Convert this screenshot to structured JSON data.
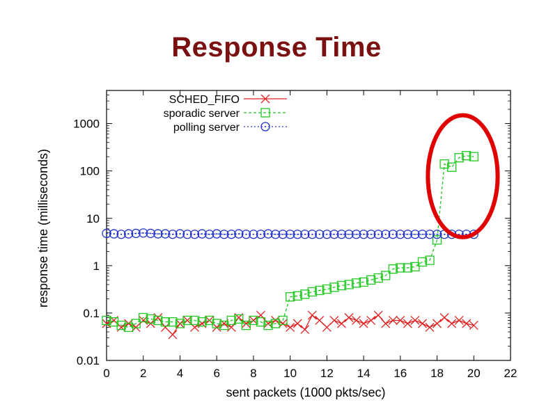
{
  "slide": {
    "title": "Response Time"
  },
  "chart_data": {
    "type": "line",
    "xlabel": "sent packets (1000 pkts/sec)",
    "ylabel": "response time (milliseconds)",
    "xlim": [
      0,
      22
    ],
    "ylim": [
      0.01,
      5000
    ],
    "yscale": "log",
    "x_ticks": [
      0,
      2,
      4,
      6,
      8,
      10,
      12,
      14,
      16,
      18,
      20,
      22
    ],
    "y_ticks": [
      0.01,
      0.1,
      1,
      10,
      100,
      1000
    ],
    "y_tick_labels": [
      "0.01",
      "0.1",
      "1",
      "10",
      "100",
      "1000"
    ],
    "legend_position": "top-left",
    "grid": false,
    "annotation": {
      "shape": "ellipse",
      "color": "#e00000",
      "encloses_x_range": [
        17.5,
        21.3
      ],
      "encloses_y_range": [
        4,
        1500
      ]
    },
    "series": [
      {
        "name": "SCHED_FIFO",
        "color": "#e02020",
        "marker": "x",
        "line": "solid",
        "x": [
          0.0,
          0.4,
          0.8,
          1.2,
          1.6,
          2.0,
          2.4,
          2.8,
          3.2,
          3.6,
          4.0,
          4.4,
          4.8,
          5.2,
          5.6,
          6.0,
          6.4,
          6.8,
          7.2,
          7.6,
          8.0,
          8.4,
          8.8,
          9.2,
          9.6,
          10.0,
          10.4,
          10.8,
          11.2,
          11.6,
          12.0,
          12.4,
          12.8,
          13.2,
          13.6,
          14.0,
          14.4,
          14.8,
          15.2,
          15.6,
          16.0,
          16.4,
          16.8,
          17.2,
          17.6,
          18.0,
          18.4,
          18.8,
          19.2,
          19.6,
          20.0
        ],
        "y": [
          0.06,
          0.07,
          0.05,
          0.06,
          0.05,
          0.07,
          0.06,
          0.08,
          0.05,
          0.035,
          0.06,
          0.07,
          0.05,
          0.06,
          0.07,
          0.05,
          0.06,
          0.05,
          0.08,
          0.06,
          0.07,
          0.09,
          0.06,
          0.07,
          0.06,
          0.05,
          0.06,
          0.045,
          0.09,
          0.07,
          0.05,
          0.07,
          0.06,
          0.08,
          0.07,
          0.06,
          0.07,
          0.09,
          0.06,
          0.07,
          0.07,
          0.06,
          0.07,
          0.06,
          0.05,
          0.06,
          0.08,
          0.06,
          0.07,
          0.06,
          0.055
        ]
      },
      {
        "name": "sporadic server",
        "color": "#20c820",
        "marker": "square",
        "line": "dashed",
        "x": [
          0.0,
          0.4,
          0.8,
          1.2,
          1.6,
          2.0,
          2.4,
          2.8,
          3.2,
          3.6,
          4.0,
          4.4,
          4.8,
          5.2,
          5.6,
          6.0,
          6.4,
          6.8,
          7.2,
          7.6,
          8.0,
          8.4,
          8.8,
          9.2,
          9.6,
          10.0,
          10.4,
          10.8,
          11.2,
          11.6,
          12.0,
          12.4,
          12.8,
          13.2,
          13.6,
          14.0,
          14.4,
          14.8,
          15.2,
          15.6,
          16.0,
          16.4,
          16.8,
          17.2,
          17.6,
          18.0,
          18.4,
          18.8,
          19.2,
          19.6,
          20.0
        ],
        "y": [
          0.07,
          0.065,
          0.055,
          0.05,
          0.06,
          0.08,
          0.075,
          0.07,
          0.065,
          0.065,
          0.06,
          0.07,
          0.07,
          0.065,
          0.07,
          0.06,
          0.055,
          0.07,
          0.075,
          0.055,
          0.07,
          0.065,
          0.055,
          0.06,
          0.07,
          0.22,
          0.23,
          0.25,
          0.28,
          0.3,
          0.32,
          0.35,
          0.38,
          0.4,
          0.43,
          0.45,
          0.5,
          0.55,
          0.62,
          0.85,
          0.9,
          0.9,
          0.95,
          1.2,
          1.3,
          3.5,
          140,
          120,
          190,
          210,
          200
        ]
      },
      {
        "name": "polling server",
        "color": "#2030d0",
        "marker": "circle",
        "line": "dotted",
        "x": [
          0.0,
          0.4,
          0.8,
          1.2,
          1.6,
          2.0,
          2.4,
          2.8,
          3.2,
          3.6,
          4.0,
          4.4,
          4.8,
          5.2,
          5.6,
          6.0,
          6.4,
          6.8,
          7.2,
          7.6,
          8.0,
          8.4,
          8.8,
          9.2,
          9.6,
          10.0,
          10.4,
          10.8,
          11.2,
          11.6,
          12.0,
          12.4,
          12.8,
          13.2,
          13.6,
          14.0,
          14.4,
          14.8,
          15.2,
          15.6,
          16.0,
          16.4,
          16.8,
          17.2,
          17.6,
          18.0,
          18.4,
          18.8,
          19.2,
          19.6,
          20.0
        ],
        "y": [
          4.8,
          4.7,
          4.6,
          4.7,
          4.8,
          4.9,
          4.8,
          4.7,
          4.7,
          4.6,
          4.7,
          4.6,
          4.6,
          4.7,
          4.6,
          4.7,
          4.6,
          4.6,
          4.7,
          4.6,
          4.6,
          4.6,
          4.7,
          4.6,
          4.6,
          4.6,
          4.6,
          4.6,
          4.6,
          4.6,
          4.6,
          4.6,
          4.6,
          4.6,
          4.6,
          4.6,
          4.6,
          4.6,
          4.6,
          4.6,
          4.6,
          4.6,
          4.6,
          4.6,
          4.6,
          4.6,
          4.6,
          4.6,
          4.6,
          4.6,
          4.6
        ]
      }
    ]
  }
}
